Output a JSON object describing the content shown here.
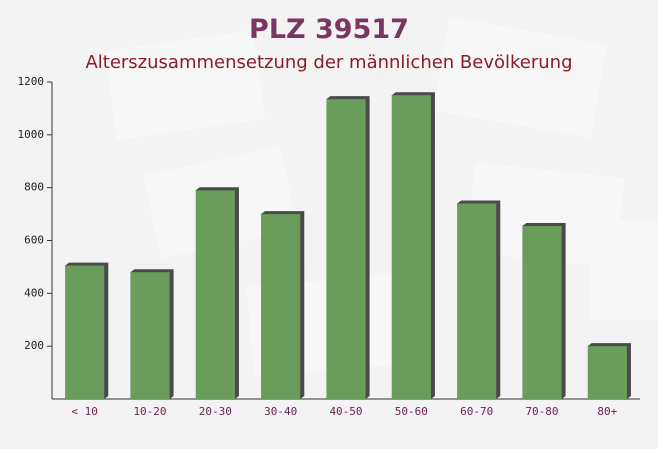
{
  "chart_data": {
    "type": "bar",
    "title": "PLZ 39517",
    "subtitle": "Alterszusammensetzung der männlichen Bevölkerung",
    "categories": [
      "< 10",
      "10-20",
      "20-30",
      "30-40",
      "40-50",
      "50-60",
      "60-70",
      "70-80",
      "80+"
    ],
    "values": [
      505,
      480,
      790,
      700,
      1135,
      1150,
      740,
      655,
      200
    ],
    "color": "#6a9d5c",
    "ylim": [
      0,
      1200
    ],
    "yticks": [
      200,
      400,
      600,
      800,
      1000,
      1200
    ]
  }
}
